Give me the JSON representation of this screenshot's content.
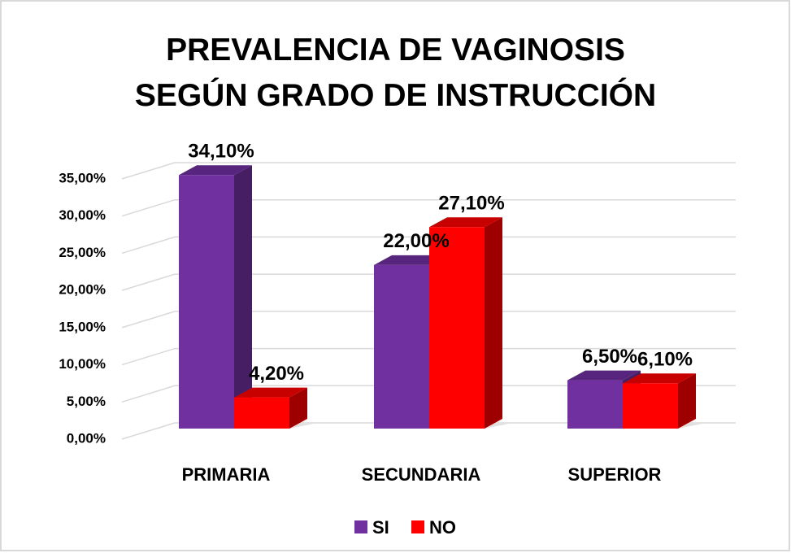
{
  "chart_data": {
    "type": "bar3d",
    "title": "PREVALENCIA DE VAGINOSIS SEGÚN GRADO DE INSTRUCCIÓN",
    "categories": [
      "PRIMARIA",
      "SECUNDARIA",
      "SUPERIOR"
    ],
    "series": [
      {
        "name": "SI",
        "color": "#7030a0",
        "values": [
          34.1,
          22.0,
          6.5
        ],
        "value_labels": [
          "34,10%",
          "22,00%",
          "6,50%"
        ]
      },
      {
        "name": "NO",
        "color": "#ff0000",
        "values": [
          4.2,
          27.1,
          6.1
        ],
        "value_labels": [
          "4,20%",
          "27,10%",
          "6,10%"
        ]
      }
    ],
    "ylim": [
      0,
      35
    ],
    "yticks": [
      {
        "value": 0,
        "label": "0,00%"
      },
      {
        "value": 5,
        "label": "5,00%"
      },
      {
        "value": 10,
        "label": "10,00%"
      },
      {
        "value": 15,
        "label": "15,00%"
      },
      {
        "value": 20,
        "label": "20,00%"
      },
      {
        "value": 25,
        "label": "25,00%"
      },
      {
        "value": 30,
        "label": "30,00%"
      },
      {
        "value": 35,
        "label": "35,00%"
      }
    ],
    "grid": true
  }
}
